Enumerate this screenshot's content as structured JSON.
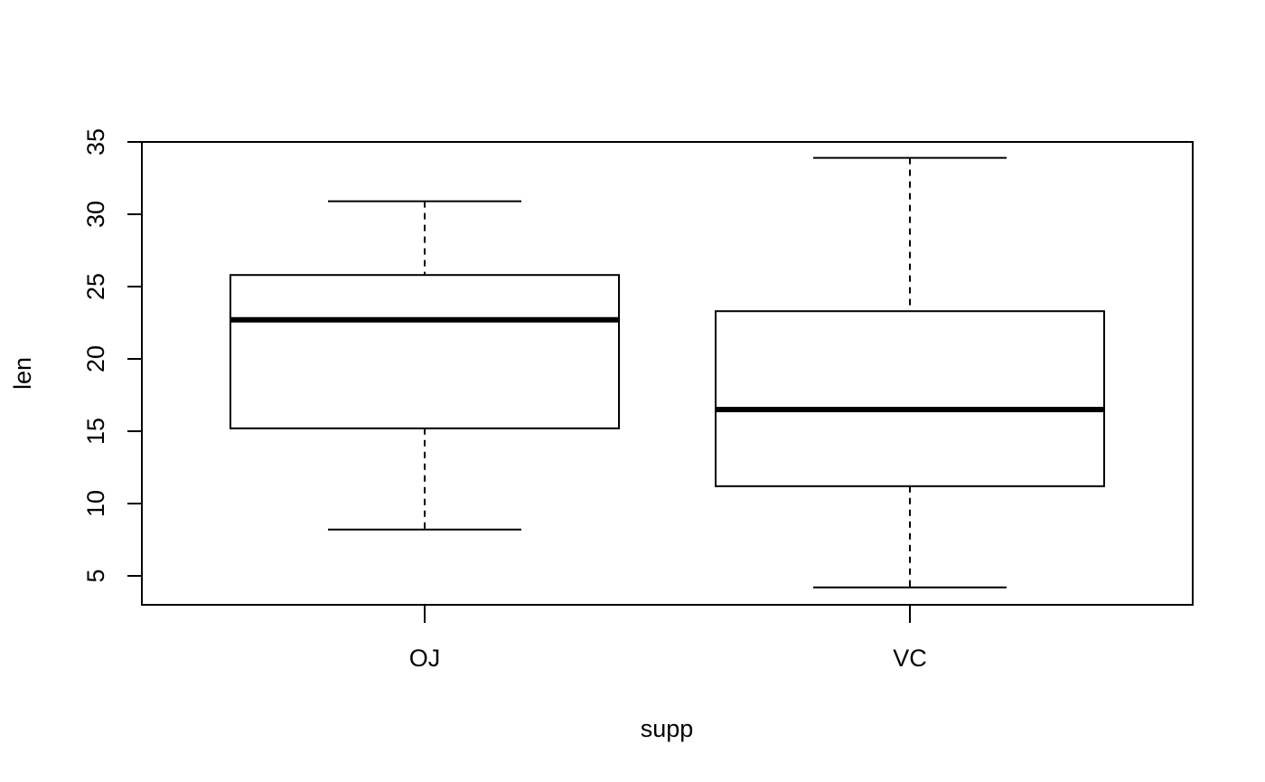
{
  "chart_data": {
    "type": "boxplot",
    "title": "",
    "xlabel": "supp",
    "ylabel": "len",
    "categories": [
      "OJ",
      "VC"
    ],
    "boxes": [
      {
        "category": "OJ",
        "whisker_low": 8.2,
        "q1": 15.2,
        "median": 22.7,
        "q3": 25.8,
        "whisker_high": 30.9
      },
      {
        "category": "VC",
        "whisker_low": 4.2,
        "q1": 11.2,
        "median": 16.5,
        "q3": 23.3,
        "whisker_high": 33.9
      }
    ],
    "yticks": [
      "5",
      "10",
      "15",
      "20",
      "25",
      "30",
      "35"
    ],
    "ylim": [
      3,
      35
    ],
    "grid": false,
    "legend": "none",
    "colors": {
      "box_fill": "#ffffff",
      "stroke": "#000000"
    }
  }
}
